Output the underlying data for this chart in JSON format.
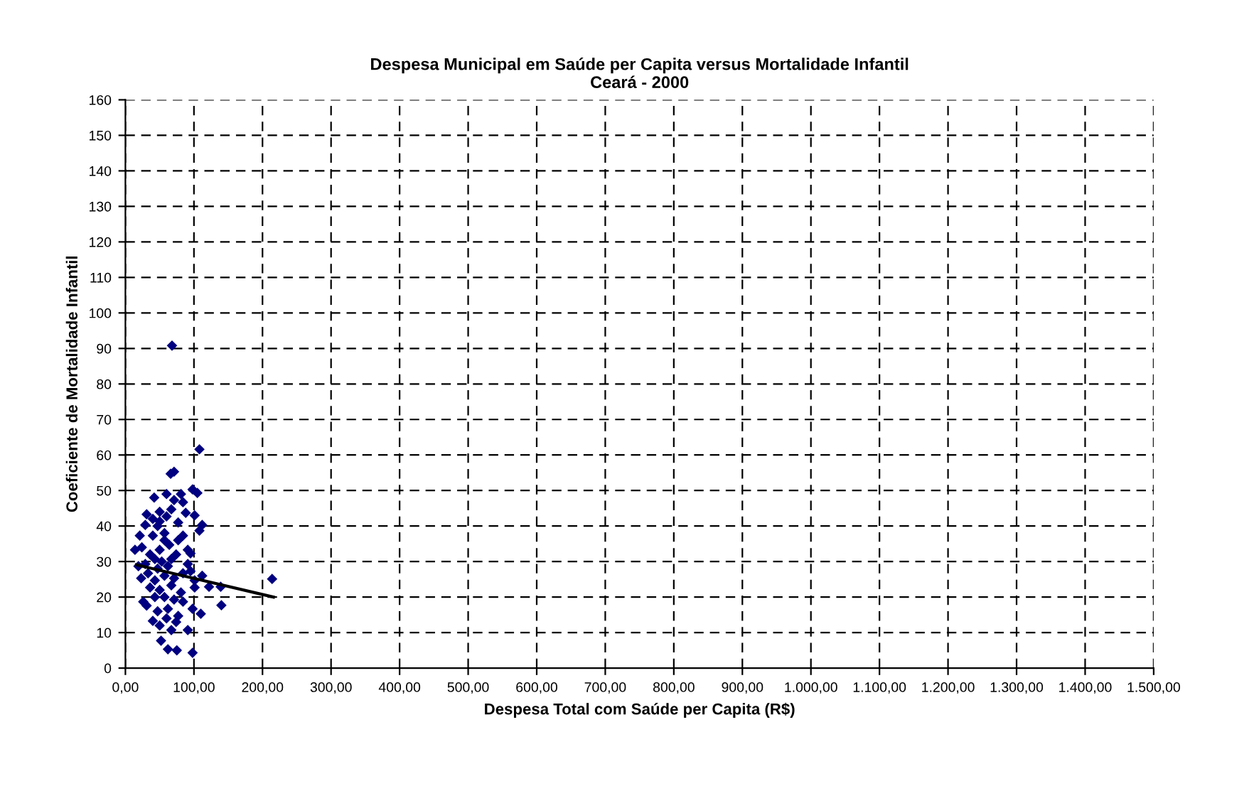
{
  "chart_data": {
    "type": "scatter",
    "title": "Despesa Municipal em Saúde per Capita versus Mortalidade Infantil\nCeará - 2000",
    "xlabel": "Despesa Total com Saúde per Capita (R$)",
    "ylabel": "Coeficiente de Mortalidade Infantil",
    "xlim": [
      0,
      1500
    ],
    "ylim": [
      0,
      160
    ],
    "xticks": [
      {
        "value": 0,
        "label": "0,00"
      },
      {
        "value": 100,
        "label": "100,00"
      },
      {
        "value": 200,
        "label": "200,00"
      },
      {
        "value": 300,
        "label": "300,00"
      },
      {
        "value": 400,
        "label": "400,00"
      },
      {
        "value": 500,
        "label": "500,00"
      },
      {
        "value": 600,
        "label": "600,00"
      },
      {
        "value": 700,
        "label": "700,00"
      },
      {
        "value": 800,
        "label": "800,00"
      },
      {
        "value": 900,
        "label": "900,00"
      },
      {
        "value": 1000,
        "label": "1.000,00"
      },
      {
        "value": 1100,
        "label": "1.100,00"
      },
      {
        "value": 1200,
        "label": "1.200,00"
      },
      {
        "value": 1300,
        "label": "1.300,00"
      },
      {
        "value": 1400,
        "label": "1.400,00"
      },
      {
        "value": 1500,
        "label": "1.500,00"
      }
    ],
    "yticks": [
      0,
      10,
      20,
      30,
      40,
      50,
      60,
      70,
      80,
      90,
      100,
      110,
      120,
      130,
      140,
      150,
      160
    ],
    "grid": true,
    "marker": "diamond",
    "series": [
      {
        "color": "#000080",
        "x": [
          68,
          108,
          66,
          71,
          98,
          105,
          42,
          60,
          81,
          71,
          84,
          31,
          50,
          67,
          88,
          101,
          112,
          108,
          29,
          21,
          47,
          77,
          14,
          24,
          40,
          57,
          84,
          95,
          50,
          64,
          74,
          43,
          91,
          33,
          43,
          57,
          71,
          84,
          95,
          36,
          50,
          67,
          81,
          101,
          122,
          139,
          214,
          140,
          26,
          31,
          47,
          62,
          77,
          98,
          110,
          50,
          67,
          91,
          74,
          52,
          62,
          75,
          98,
          53,
          62,
          47,
          67,
          57,
          36,
          77,
          50,
          60,
          40,
          57,
          71,
          43,
          84,
          60,
          40,
          23,
          19,
          101,
          112,
          91,
          29
        ],
        "values": [
          90.8,
          61.6,
          54.7,
          55.3,
          50.3,
          49.3,
          48,
          49,
          49,
          47.3,
          46.7,
          43.3,
          44,
          44.7,
          43.7,
          43,
          40.3,
          38.7,
          40.3,
          37.3,
          40,
          41,
          33.3,
          34,
          37.3,
          38,
          37.3,
          32.3,
          33.3,
          34.7,
          32,
          30.7,
          29.3,
          26.7,
          24.7,
          26,
          25.3,
          26.7,
          27.3,
          22.7,
          22,
          23.3,
          21.3,
          22.7,
          22.9,
          22.9,
          25.1,
          17.7,
          18.7,
          17.6,
          16,
          16.7,
          14.7,
          16.7,
          15.3,
          12,
          10.7,
          10.7,
          13,
          7.7,
          5.3,
          5,
          4.3,
          30,
          28.7,
          28,
          30.7,
          36,
          32,
          36,
          41.3,
          42.7,
          42,
          20,
          19.3,
          20,
          18.7,
          14,
          13.3,
          25.3,
          28.7,
          24.7,
          26,
          33.3,
          29.3
        ]
      },
      {
        "type": "line",
        "color": "#000000",
        "marker": "none",
        "x": [
          16,
          216
        ],
        "values": [
          29.1,
          20.0
        ]
      }
    ]
  }
}
